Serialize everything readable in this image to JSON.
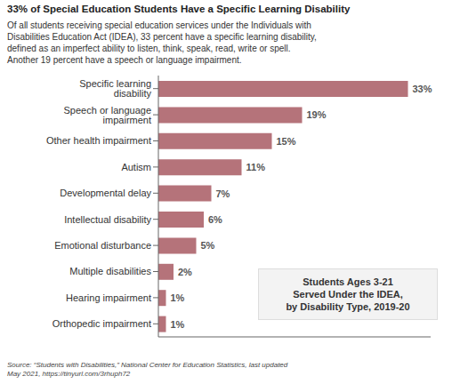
{
  "chart_data": {
    "type": "bar",
    "orientation": "horizontal",
    "title": "33% of Special Education Students Have a Specific Learning Disability",
    "subtitle": "Of all students receiving special education services under the Individuals with\nDisabilities Education Act (IDEA), 33 percent have a specific learning disability,\ndefined as an imperfect ability to listen, think, speak, read, write or spell.\nAnother 19 percent have a speech or language impairment.",
    "annotation": "Students Ages 3-21\nServed Under the IDEA,\nby Disability Type, 2019-20",
    "source": "Source: “Students with Disabilities,” National Center for Education Statistics, last updated\nMay 2021, https://tinyurl.com/3rhuph72",
    "categories": [
      "Specific learning disability",
      "Speech or language impairment",
      "Other health impairment",
      "Autism",
      "Developmental delay",
      "Intellectual disability",
      "Emotional disturbance",
      "Multiple disabilities",
      "Hearing impairment",
      "Orthopedic impairment"
    ],
    "values": [
      33,
      19,
      15,
      11,
      7,
      6,
      5,
      2,
      1,
      1
    ],
    "value_labels": [
      "33%",
      "19%",
      "15%",
      "11%",
      "7%",
      "6%",
      "5%",
      "2%",
      "1%",
      "1%"
    ],
    "data_labels": true,
    "color": "#b5737a",
    "xlim": [
      0,
      36
    ],
    "grid": false,
    "tick_labels": "y"
  }
}
